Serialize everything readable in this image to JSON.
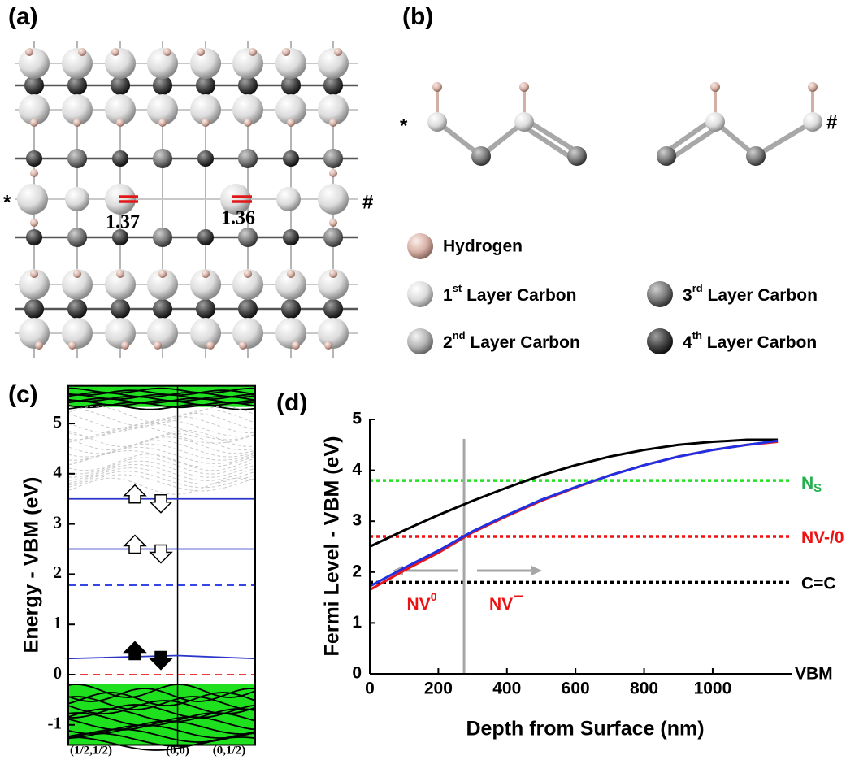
{
  "panel_a": {
    "label": "(a)",
    "markers": [
      "*",
      "#"
    ],
    "bond_lengths": [
      "1.37",
      "1.36"
    ]
  },
  "panel_b": {
    "label": "(b)",
    "markers": [
      "*",
      "#"
    ]
  },
  "legend": [
    {
      "name": "Hydrogen"
    },
    {
      "number": "1",
      "suffix": "st",
      "name": " Layer Carbon"
    },
    {
      "number": "2",
      "suffix": "nd",
      "name": " Layer Carbon"
    },
    {
      "number": "3",
      "suffix": "rd",
      "name": " Layer Carbon"
    },
    {
      "number": "4",
      "suffix": "th",
      "name": " Layer Carbon"
    }
  ],
  "chart_data": [
    {
      "type": "band-structure",
      "label": "(c)",
      "y_label": "Energy - VBM (eV)",
      "categories": [
        "(1/2,1/2)",
        "(0,0)",
        "(0,1/2)"
      ],
      "ylim": [
        -1.4,
        5.75
      ],
      "yticks": [
        -1,
        0,
        1,
        2,
        3,
        4,
        5
      ],
      "levels": [
        {
          "values": [
            3.5,
            3.5,
            3.5
          ],
          "color": "#2b36c8",
          "style": "solid"
        },
        {
          "values": [
            2.5,
            2.5,
            2.5
          ],
          "color": "#2b36c8",
          "style": "solid"
        },
        {
          "values": [
            1.78,
            1.78,
            1.78
          ],
          "color": "#1a2be0",
          "style": "dashed"
        },
        {
          "values": [
            0.32,
            0.38,
            0.32
          ],
          "color": "#2b36c8",
          "style": "solid"
        },
        {
          "values": [
            0,
            0,
            0
          ],
          "color": "#e02020",
          "style": "dashed"
        }
      ]
    },
    {
      "type": "line",
      "label": "(d)",
      "x_label": "Depth from Surface (nm)",
      "y_label": "Fermi Level - VBM (eV)",
      "x": [
        0,
        100,
        200,
        300,
        400,
        500,
        600,
        700,
        800,
        900,
        1000,
        1100,
        1190
      ],
      "series": [
        {
          "color": "#000000",
          "values": [
            2.5,
            2.82,
            3.12,
            3.4,
            3.66,
            3.9,
            4.1,
            4.27,
            4.4,
            4.5,
            4.56,
            4.6,
            4.6
          ]
        },
        {
          "color": "#e8141b",
          "values": [
            1.65,
            2.03,
            2.38,
            2.78,
            3.1,
            3.4,
            3.66,
            3.9,
            4.1,
            4.27,
            4.4,
            4.5,
            4.56
          ]
        },
        {
          "color": "#2030e0",
          "values": [
            1.72,
            2.08,
            2.42,
            2.8,
            3.12,
            3.42,
            3.67,
            3.9,
            4.1,
            4.27,
            4.4,
            4.5,
            4.58
          ]
        }
      ],
      "reference_lines": [
        {
          "value": 3.8,
          "label": "N",
          "label_sub": "S",
          "color": "#22e022",
          "label_color": "#22b04a"
        },
        {
          "value": 2.7,
          "label": "NV-/0",
          "color": "#ee1111",
          "label_color": "#ee1111"
        },
        {
          "value": 1.8,
          "label": "C=C",
          "color": "#000000",
          "label_color": "#000000"
        }
      ],
      "baseline": {
        "value": 0,
        "label": "VBM"
      },
      "divider": {
        "x": 275,
        "color": "#a6a6a6"
      },
      "regions": [
        {
          "text": "NV",
          "sup": "0",
          "color": "#ee1111"
        },
        {
          "text": "NV",
          "sup": "−",
          "color": "#ee1111"
        }
      ],
      "xlim": [
        0,
        1230
      ],
      "xticks": [
        0,
        200,
        400,
        600,
        800,
        1000
      ],
      "ylim": [
        0,
        5
      ],
      "yticks": [
        0,
        1,
        2,
        3,
        4,
        5
      ]
    }
  ]
}
